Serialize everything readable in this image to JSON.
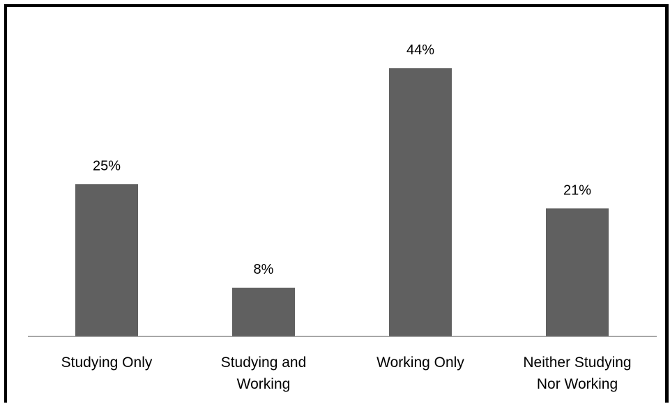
{
  "chart_data": {
    "type": "bar",
    "categories": [
      [
        "Studying Only"
      ],
      [
        "Studying and",
        "Working"
      ],
      [
        "Working Only"
      ],
      [
        "Neither Studying",
        "Nor Working"
      ]
    ],
    "values": [
      25,
      8,
      44,
      21
    ],
    "data_labels": [
      "25%",
      "8%",
      "44%",
      "21%"
    ],
    "unit": "%",
    "title": "",
    "xlabel": "",
    "ylabel": "",
    "ylim": [
      0,
      50
    ],
    "grid": false,
    "legend": "none",
    "bar_color": "#606060",
    "axis_color": "#8c8c8c"
  }
}
